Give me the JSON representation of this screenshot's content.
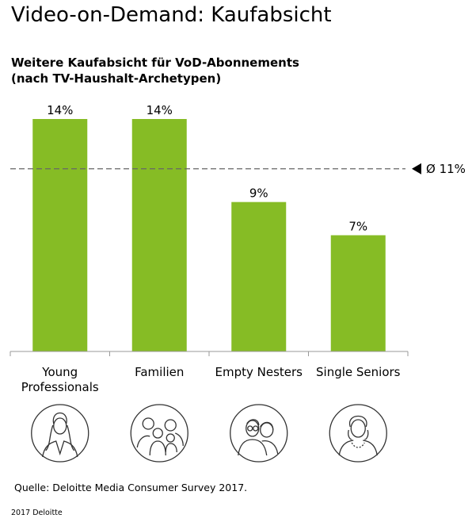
{
  "title": "Video-on-Demand: Kaufabsicht",
  "subtitle_line1": "Weitere Kaufabsicht für VoD-Abonnements",
  "subtitle_line2": "(nach TV-Haushalt-Archetypen)",
  "source": "Quelle: Deloitte Media Consumer Survey 2017.",
  "copyright": "2017 Deloitte",
  "colors": {
    "bar": "#86bc25",
    "axis": "#999999",
    "average_line": "#666666",
    "icon_stroke": "#333333"
  },
  "chart_data": {
    "type": "bar",
    "categories": [
      [
        "Young",
        "Professionals"
      ],
      [
        "Familien"
      ],
      [
        "Empty Nesters"
      ],
      [
        "Single Seniors"
      ]
    ],
    "values": [
      14,
      14,
      9,
      7
    ],
    "value_labels": [
      "14%",
      "14%",
      "9%",
      "7%"
    ],
    "unit": "%",
    "average": {
      "value": 11,
      "label": "Ø 11%"
    },
    "ylim": [
      0,
      14
    ],
    "icons": [
      "young-professional-woman-icon",
      "family-icon",
      "couple-icon",
      "senior-woman-icon"
    ],
    "grid": false
  }
}
